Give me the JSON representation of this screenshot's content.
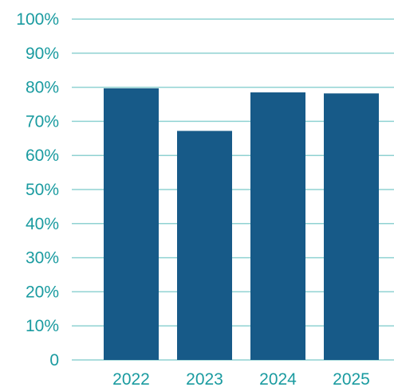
{
  "chart_data": {
    "type": "bar",
    "categories": [
      "2022",
      "2023",
      "2024",
      "2025"
    ],
    "series": [
      {
        "values": [
          79.7,
          67.2,
          78.5,
          78.2
        ]
      }
    ],
    "ylim": [
      0,
      100
    ],
    "yticks": [
      {
        "value": 0,
        "label": "0"
      },
      {
        "value": 10,
        "label": "10%"
      },
      {
        "value": 20,
        "label": "20%"
      },
      {
        "value": 30,
        "label": "30%"
      },
      {
        "value": 40,
        "label": "40%"
      },
      {
        "value": 50,
        "label": "50%"
      },
      {
        "value": 60,
        "label": "60%"
      },
      {
        "value": 70,
        "label": "70%"
      },
      {
        "value": 80,
        "label": "80%"
      },
      {
        "value": 90,
        "label": "90%"
      },
      {
        "value": 100,
        "label": "100%"
      }
    ],
    "grid": true,
    "legend": "none",
    "colors": {
      "bar": "#175a88",
      "grid": "#8fd2d2",
      "tick_text": "#1a9ba0"
    }
  }
}
